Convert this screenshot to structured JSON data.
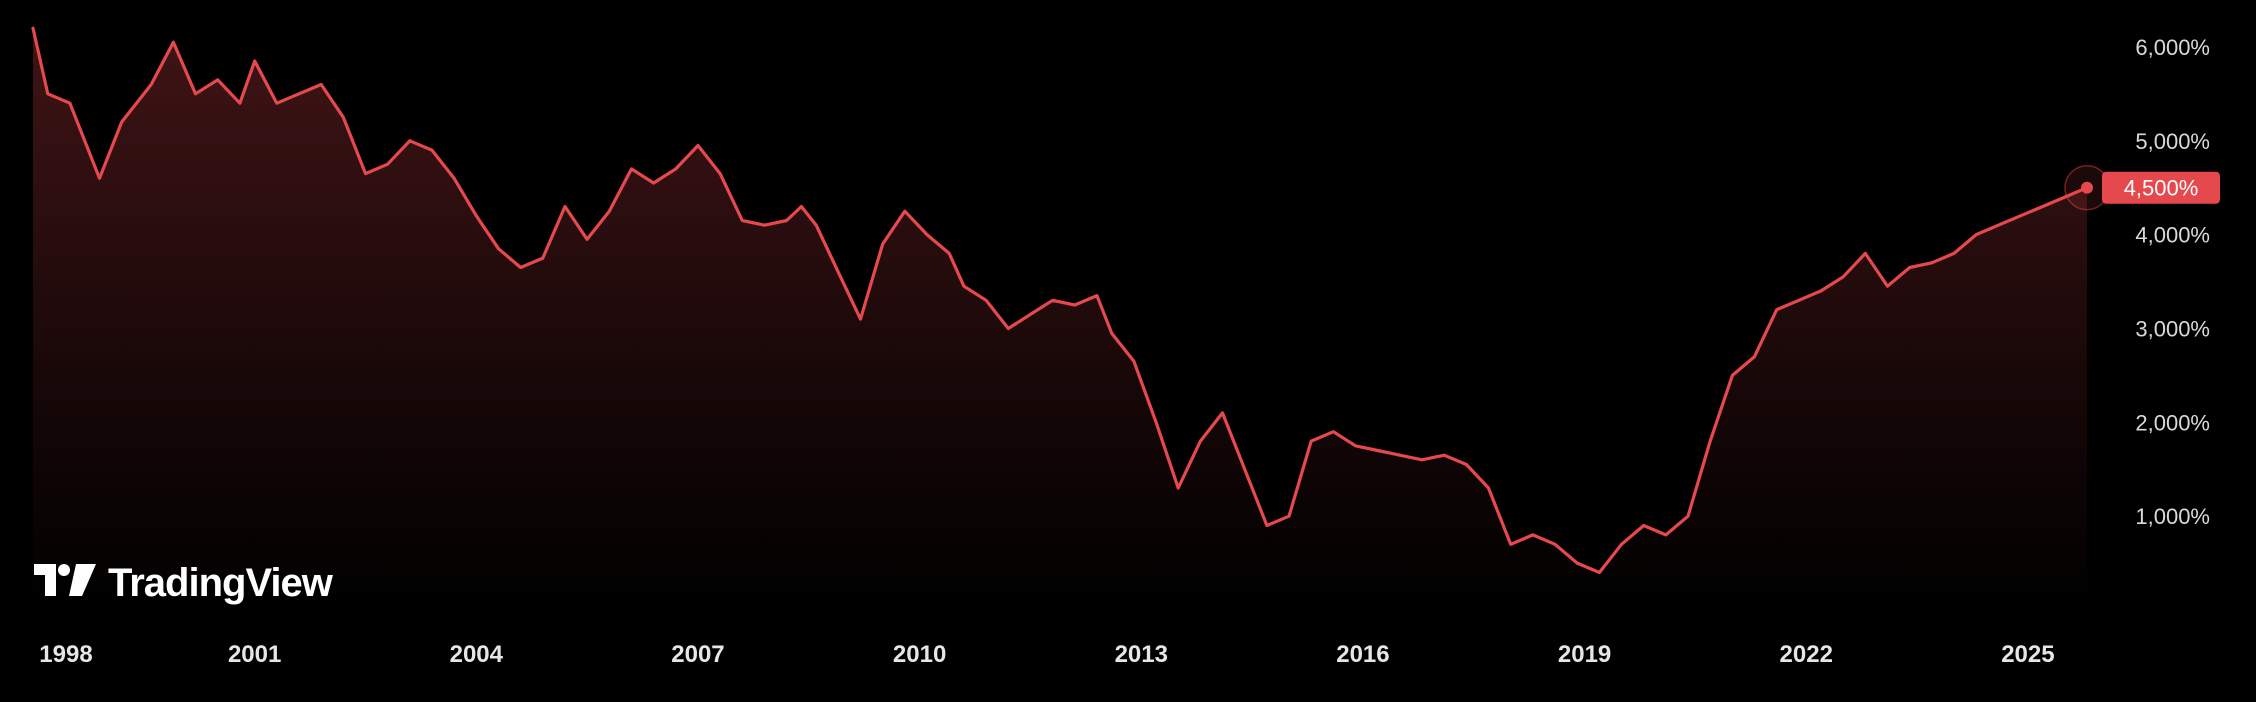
{
  "brand": {
    "name": "TradingView",
    "logo_icon": "tradingview-logo-icon"
  },
  "colors": {
    "line": "#e5484d",
    "background": "#000000",
    "tick_text": "#d9d9d9",
    "badge": "#e5484d"
  },
  "last_value_label": "4,500%",
  "chart_data": {
    "type": "area",
    "title": "",
    "xlabel": "",
    "ylabel": "",
    "x_tick_labels": [
      "1998",
      "2001",
      "2004",
      "2007",
      "2010",
      "2013",
      "2016",
      "2019",
      "2022",
      "2025"
    ],
    "y_tick_labels": [
      "1,000%",
      "2,000%",
      "3,000%",
      "4,000%",
      "5,000%",
      "6,000%"
    ],
    "y_tick_values": [
      1000,
      2000,
      3000,
      4000,
      5000,
      6000
    ],
    "xlim": [
      1998.0,
      2025.8
    ],
    "ylim": [
      0,
      6500
    ],
    "grid": false,
    "series": [
      {
        "x": [
          1998.0,
          1998.2,
          1998.5,
          1998.9,
          1999.2,
          1999.6,
          1999.9,
          2000.2,
          2000.5,
          2000.8,
          2001.0,
          2001.3,
          2001.6,
          2001.9,
          2002.2,
          2002.5,
          2002.8,
          2003.1,
          2003.4,
          2003.7,
          2004.0,
          2004.3,
          2004.6,
          2004.9,
          2005.2,
          2005.5,
          2005.8,
          2006.1,
          2006.4,
          2006.7,
          2007.0,
          2007.3,
          2007.6,
          2007.9,
          2008.2,
          2008.4,
          2008.6,
          2008.9,
          2009.2,
          2009.5,
          2009.8,
          2010.1,
          2010.4,
          2010.6,
          2010.9,
          2011.2,
          2011.5,
          2011.8,
          2012.1,
          2012.4,
          2012.6,
          2012.9,
          2013.2,
          2013.5,
          2013.8,
          2014.1,
          2014.4,
          2014.7,
          2015.0,
          2015.3,
          2015.6,
          2015.9,
          2016.2,
          2016.5,
          2016.8,
          2017.1,
          2017.4,
          2017.7,
          2018.0,
          2018.3,
          2018.6,
          2018.9,
          2019.2,
          2019.5,
          2019.8,
          2020.1,
          2020.4,
          2020.7,
          2021.0,
          2021.3,
          2021.6,
          2021.9,
          2022.2,
          2022.5,
          2022.8,
          2023.1,
          2023.4,
          2023.7,
          2024.0,
          2024.3,
          2024.6,
          2024.9,
          2025.2,
          2025.5,
          2025.8
        ],
        "values": [
          6200,
          5500,
          5400,
          4600,
          5200,
          5600,
          6050,
          5500,
          5650,
          5400,
          5850,
          5400,
          5500,
          5600,
          5250,
          4650,
          4750,
          5000,
          4900,
          4600,
          4200,
          3850,
          3650,
          3750,
          4300,
          3950,
          4250,
          4700,
          4550,
          4700,
          4950,
          4650,
          4150,
          4100,
          4150,
          4300,
          4100,
          3600,
          3100,
          3900,
          4250,
          4000,
          3800,
          3450,
          3300,
          3000,
          3150,
          3300,
          3250,
          3350,
          2950,
          2650,
          2000,
          1300,
          1800,
          2100,
          1500,
          900,
          1000,
          1800,
          1900,
          1750,
          1700,
          1650,
          1600,
          1650,
          1550,
          1300,
          700,
          800,
          700,
          500,
          400,
          700,
          900,
          800,
          1000,
          1800,
          2500,
          2700,
          3200,
          3300,
          3400,
          3550,
          3800,
          3450,
          3650,
          3700,
          3800,
          4000,
          4100,
          4200,
          4300,
          4400,
          4500
        ]
      }
    ]
  }
}
